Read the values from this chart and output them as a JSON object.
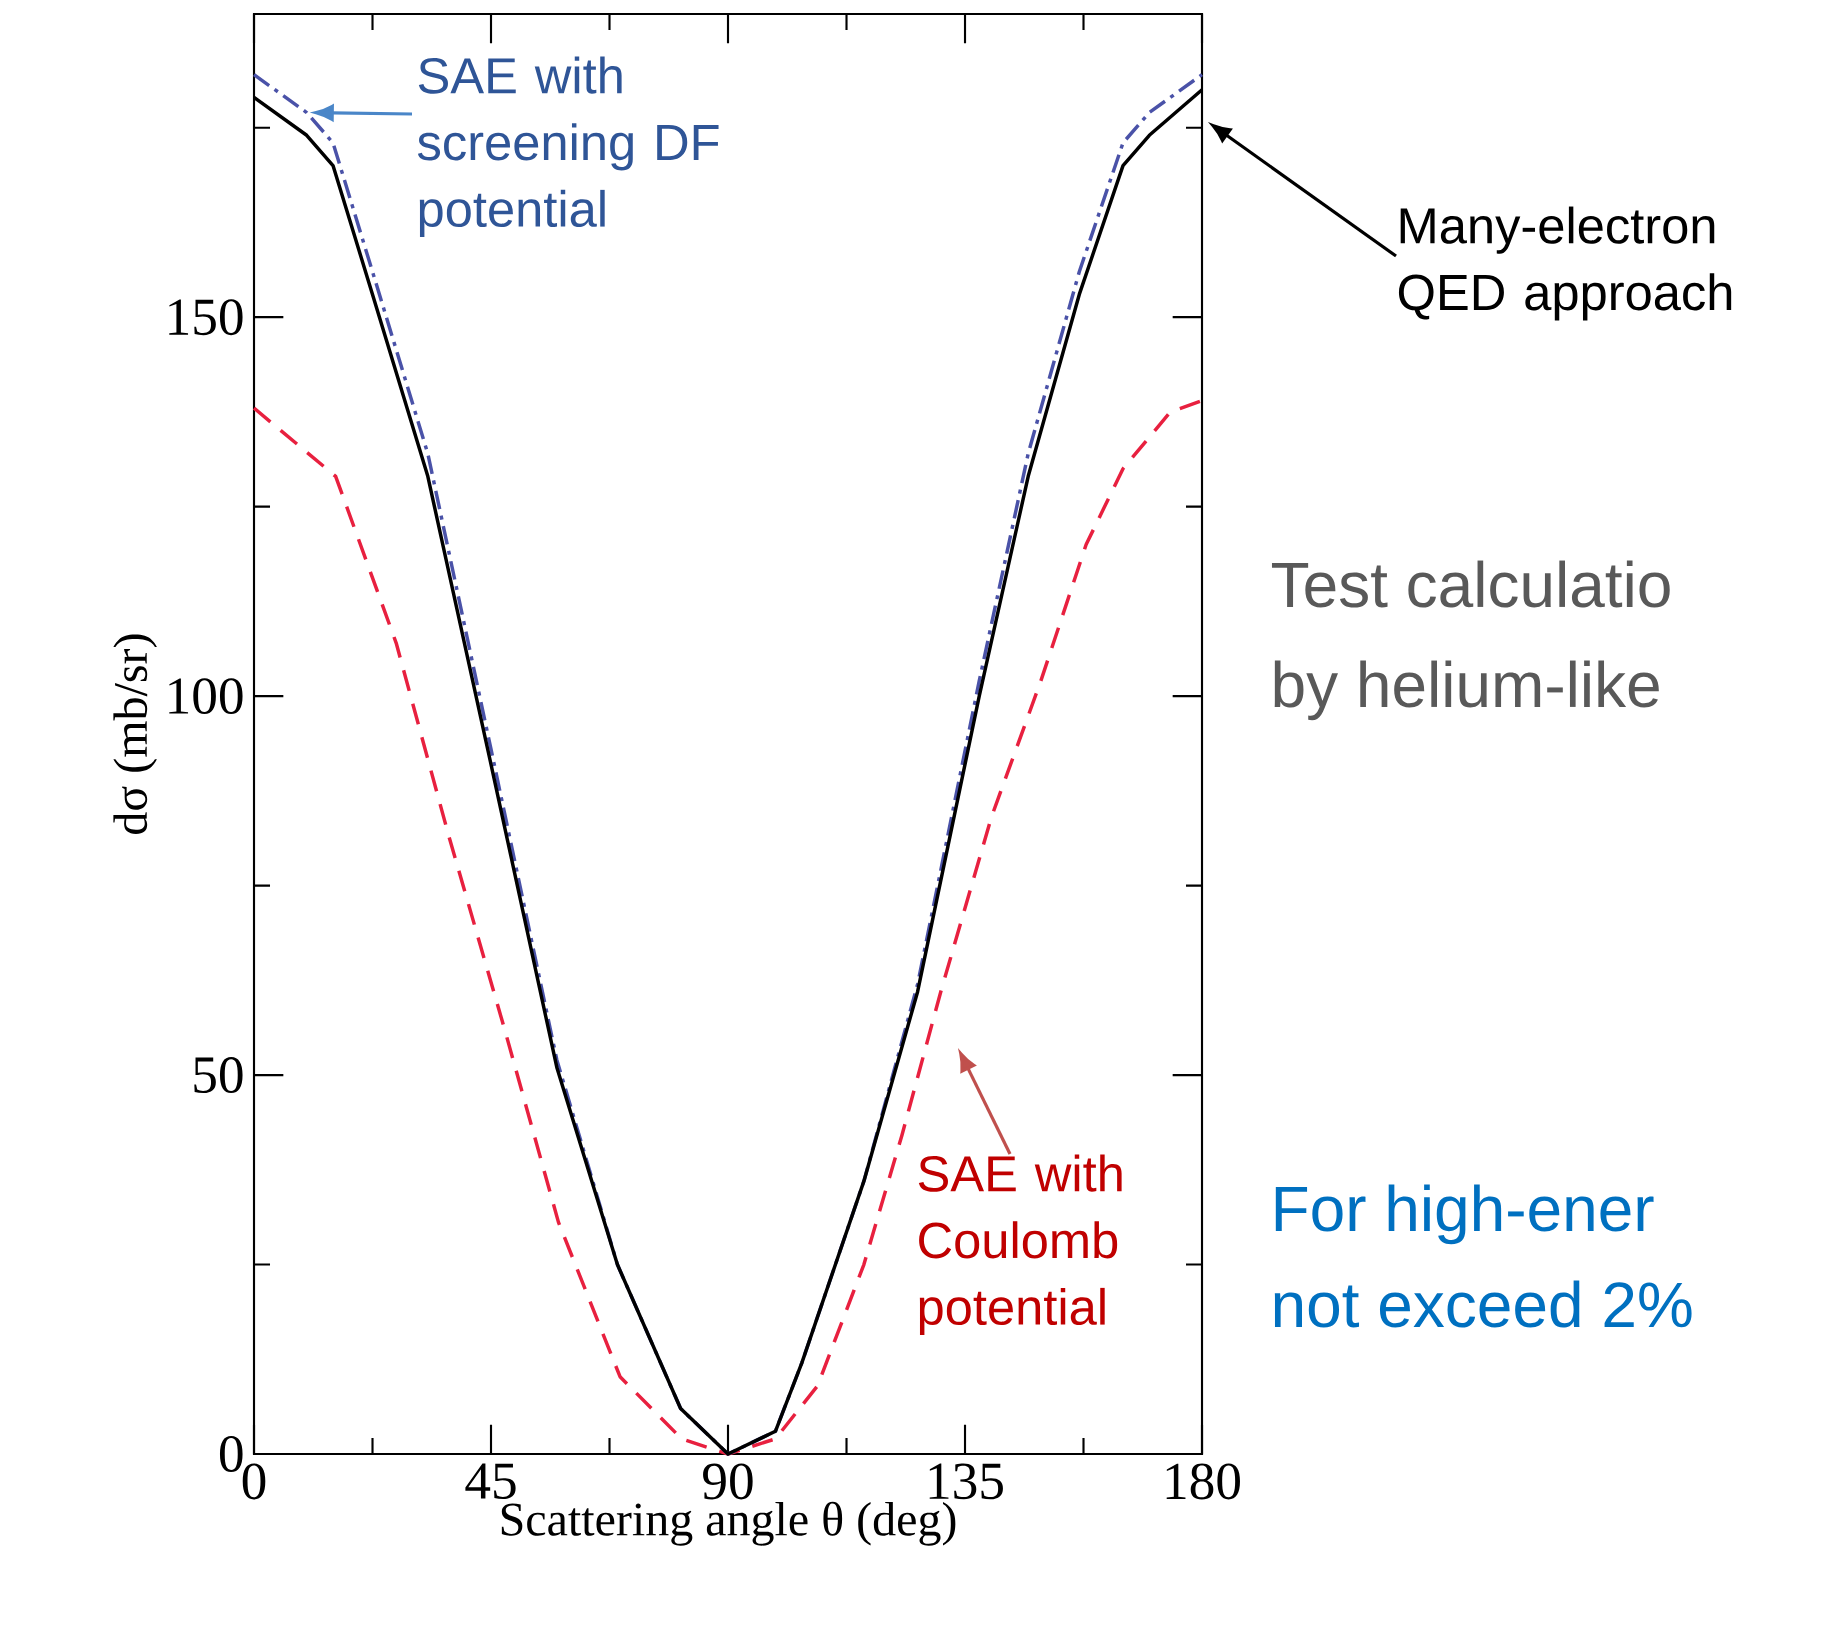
{
  "chart_data": {
    "type": "line",
    "xlabel": "Scattering angle θ (deg)",
    "ylabel": "dσ (mb/sr)",
    "xlim": [
      0,
      180
    ],
    "ylim": [
      0,
      190
    ],
    "xticks": [
      0,
      {
        "value": 22.5,
        "label": null
      },
      45,
      {
        "value": 67.5,
        "label": null
      },
      90,
      {
        "value": 112.5,
        "label": null
      },
      135,
      {
        "value": 157.5,
        "label": null
      },
      180
    ],
    "yticks": [
      0,
      {
        "value": 25,
        "label": null
      },
      50,
      {
        "value": 75,
        "label": null
      },
      100,
      {
        "value": 125,
        "label": null
      },
      150,
      {
        "value": 175,
        "label": null
      }
    ],
    "series": [
      {
        "color": "#e8203f",
        "line_style": "dashed",
        "x": [
          0,
          15.5,
          27,
          37,
          47.6,
          57.8,
          69.5,
          81.2,
          90,
          99,
          107,
          115.8,
          123,
          130.4,
          140,
          149.4,
          158,
          165,
          174,
          180
        ],
        "values": [
          138,
          129,
          107,
          81.5,
          56,
          30.6,
          10.2,
          2,
          0,
          2,
          9,
          25,
          42,
          61,
          84,
          102,
          120,
          130,
          137.5,
          139
        ]
      },
      {
        "color": "#4a52a8",
        "line_style": "dashdot",
        "x": [
          0,
          10,
          15,
          22.5,
          33,
          45,
          57.5,
          69,
          81,
          90,
          99,
          104,
          115.8,
          126,
          137.7,
          147,
          156.7,
          165,
          170,
          180
        ],
        "values": [
          182,
          177,
          173,
          156,
          132,
          93,
          52,
          25,
          6,
          0,
          3,
          12,
          36,
          62,
          102,
          132,
          156,
          173,
          177,
          182
        ]
      },
      {
        "color": "#000000",
        "line_style": "solid",
        "x": [
          0,
          10,
          15,
          22.5,
          33,
          45,
          57.5,
          69,
          81,
          90,
          99,
          104,
          115.8,
          126,
          137.7,
          147,
          156.7,
          165,
          170,
          180
        ],
        "values": [
          179,
          174,
          170,
          153,
          129,
          91,
          51,
          25,
          6,
          0,
          3,
          12,
          36,
          61,
          100,
          129,
          153,
          170,
          174,
          180
        ]
      }
    ],
    "annotations": [
      {
        "text": "SAE with screening DF potential",
        "x": 10.6,
        "y": 177
      },
      "Many-electron QED approach",
      "SAE with Coulomb potential",
      "Test calculatio",
      "by helium-like",
      "For high-ener",
      "not exceed 2%"
    ]
  }
}
